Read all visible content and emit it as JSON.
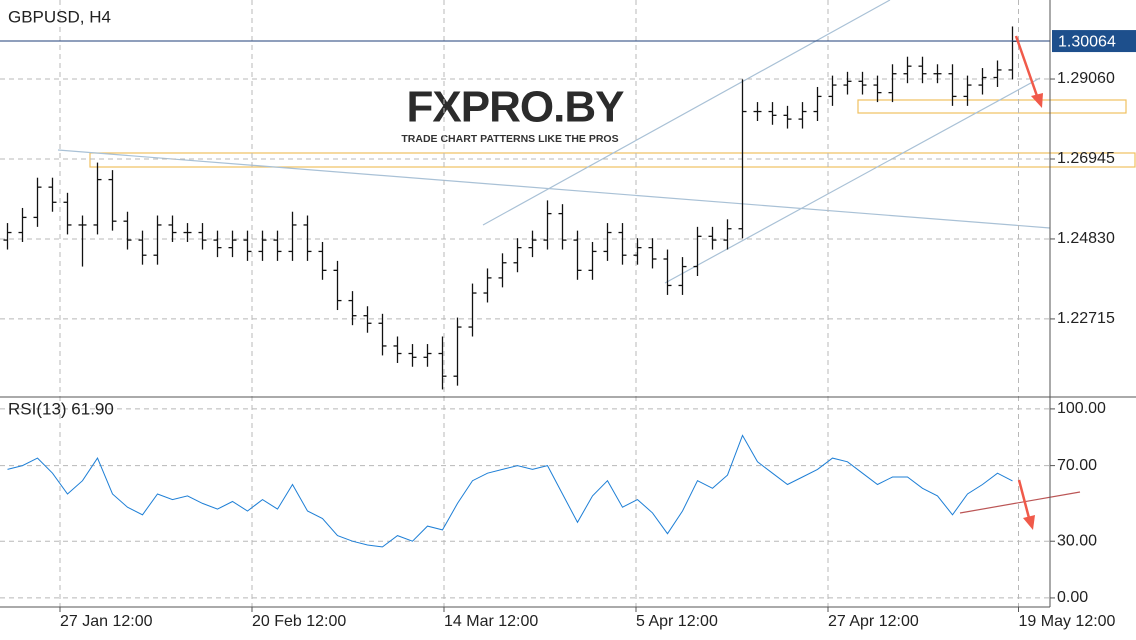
{
  "logo": {
    "text": "FXPRO.BY",
    "tagline": "TRADE CHART PATTERNS LIKE THE PROS"
  },
  "chart_data": [
    {
      "type": "ohlc",
      "title": "GBPUSD, H4",
      "color": "#111111",
      "grid": true,
      "open": [
        1.248,
        1.25,
        1.254,
        1.262,
        1.258,
        1.252,
        1.252,
        1.264,
        1.253,
        1.248,
        1.244,
        1.252,
        1.25,
        1.25,
        1.248,
        1.246,
        1.248,
        1.245,
        1.248,
        1.245,
        1.252,
        1.245,
        1.24,
        1.232,
        1.228,
        1.226,
        1.22,
        1.218,
        1.217,
        1.218,
        1.212,
        1.225,
        1.234,
        1.238,
        1.242,
        1.246,
        1.248,
        1.255,
        1.248,
        1.24,
        1.245,
        1.25,
        1.244,
        1.246,
        1.243,
        1.236,
        1.241,
        1.249,
        1.248,
        1.251,
        1.282,
        1.282,
        1.281,
        1.28,
        1.282,
        1.286,
        1.289,
        1.29,
        1.289,
        1.287,
        1.292,
        1.294,
        1.292,
        1.292,
        1.286,
        1.289,
        1.291,
        1.293
      ],
      "high": [
        1.2525,
        1.2565,
        1.2645,
        1.2645,
        1.2605,
        1.2545,
        1.2685,
        1.2665,
        1.2555,
        1.2505,
        1.2545,
        1.2545,
        1.2525,
        1.2525,
        1.2505,
        1.2505,
        1.2505,
        1.2505,
        1.2505,
        1.2555,
        1.2545,
        1.2475,
        1.2425,
        1.2345,
        1.2305,
        1.2285,
        1.2225,
        1.2205,
        1.2205,
        1.2225,
        1.2275,
        1.2365,
        1.2405,
        1.2445,
        1.2485,
        1.2505,
        1.2585,
        1.2575,
        1.2505,
        1.2475,
        1.2525,
        1.2525,
        1.2485,
        1.2485,
        1.2455,
        1.2435,
        1.2515,
        1.2515,
        1.2535,
        1.2905,
        1.2845,
        1.2845,
        1.2835,
        1.2845,
        1.2885,
        1.2915,
        1.2925,
        1.2925,
        1.2915,
        1.2945,
        1.2965,
        1.2965,
        1.2945,
        1.2945,
        1.2915,
        1.2935,
        1.2955,
        1.3045
      ],
      "low": [
        1.2455,
        1.2475,
        1.2515,
        1.2555,
        1.2495,
        1.241,
        1.2495,
        1.2505,
        1.2455,
        1.2415,
        1.2415,
        1.2475,
        1.2475,
        1.2455,
        1.2435,
        1.2435,
        1.2425,
        1.2425,
        1.2425,
        1.2425,
        1.2425,
        1.2375,
        1.2295,
        1.2255,
        1.2235,
        1.2175,
        1.2155,
        1.2145,
        1.2145,
        1.2085,
        1.2095,
        1.2225,
        1.2315,
        1.2355,
        1.2395,
        1.2435,
        1.2455,
        1.2455,
        1.2375,
        1.2375,
        1.2425,
        1.2415,
        1.2415,
        1.2405,
        1.2335,
        1.2335,
        1.2385,
        1.2455,
        1.2455,
        1.2485,
        1.2795,
        1.2785,
        1.2775,
        1.2775,
        1.2795,
        1.2835,
        1.2865,
        1.2865,
        1.2845,
        1.2845,
        1.2895,
        1.2895,
        1.2895,
        1.2835,
        1.2835,
        1.2865,
        1.2885,
        1.2905
      ],
      "close": [
        1.25,
        1.254,
        1.262,
        1.258,
        1.252,
        1.252,
        1.264,
        1.253,
        1.248,
        1.244,
        1.252,
        1.25,
        1.25,
        1.248,
        1.246,
        1.248,
        1.245,
        1.248,
        1.245,
        1.252,
        1.245,
        1.24,
        1.232,
        1.228,
        1.226,
        1.22,
        1.218,
        1.217,
        1.218,
        1.212,
        1.225,
        1.234,
        1.238,
        1.242,
        1.246,
        1.248,
        1.255,
        1.248,
        1.24,
        1.245,
        1.25,
        1.244,
        1.246,
        1.243,
        1.236,
        1.241,
        1.249,
        1.248,
        1.251,
        1.282,
        1.282,
        1.281,
        1.28,
        1.282,
        1.286,
        1.289,
        1.29,
        1.289,
        1.287,
        1.292,
        1.294,
        1.292,
        1.292,
        1.286,
        1.289,
        1.291,
        1.293,
        1.3006
      ],
      "current_price": 1.30064,
      "xlim": [
        -0.5,
        69.5
      ],
      "xticks": [
        {
          "value": 3.5,
          "label": "27 Jan 12:00"
        },
        {
          "value": 16.3,
          "label": "20 Feb 12:00"
        },
        {
          "value": 29.1,
          "label": "14 Mar 12:00"
        },
        {
          "value": 41.9,
          "label": "5 Apr 12:00"
        },
        {
          "value": 54.7,
          "label": "27 Apr 12:00"
        },
        {
          "value": 67.4,
          "label": "19 May 12:00"
        }
      ],
      "ylim": [
        1.2065,
        1.3115
      ],
      "yticks": [
        {
          "value": 1.22715,
          "label": "1.22715"
        },
        {
          "value": 1.2483,
          "label": "1.24830"
        },
        {
          "value": 1.26945,
          "label": "1.26945"
        },
        {
          "value": 1.2906,
          "label": "1.29060"
        }
      ]
    },
    {
      "type": "line",
      "title": "RSI(13) 61.90",
      "color": "#1e7fd6",
      "grid": true,
      "values": [
        68,
        70,
        74,
        66,
        55,
        62,
        74,
        55,
        48,
        44,
        55,
        52,
        54,
        50,
        47,
        51,
        46,
        52,
        47,
        60,
        46,
        42,
        33,
        30,
        28,
        27,
        33,
        30,
        38,
        36,
        50,
        62,
        66,
        68,
        70,
        68,
        70,
        55,
        40,
        54,
        62,
        48,
        52,
        45,
        34,
        46,
        62,
        58,
        65,
        86,
        72,
        66,
        60,
        64,
        68,
        74,
        72,
        66,
        60,
        64,
        64,
        58,
        54,
        44,
        55,
        60,
        66,
        61.9
      ],
      "ylim": [
        -4.8,
        106.3
      ],
      "yticks": [
        {
          "value": 0,
          "label": "0.00"
        },
        {
          "value": 30,
          "label": "30.00"
        },
        {
          "value": 70,
          "label": "70.00"
        },
        {
          "value": 100,
          "label": "100.00"
        }
      ]
    }
  ]
}
